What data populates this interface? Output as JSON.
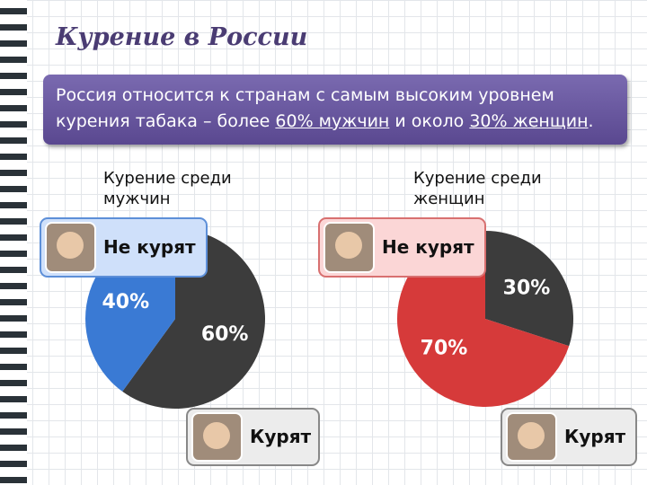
{
  "title": "Курение в России",
  "banner": [
    "Россия относится  к странам с самым высоким уровнем курения табака – более ",
    "60% мужчин",
    " и около ",
    "30% женщин",
    "."
  ],
  "chart_data": [
    {
      "type": "pie",
      "title": "Курение среди мужчин",
      "categories": [
        "Не курят",
        "Курят"
      ],
      "values": [
        40,
        60
      ],
      "value_labels": [
        "40%",
        "60%"
      ],
      "colors": [
        "#3a7ad4",
        "#3c3c3c"
      ]
    },
    {
      "type": "pie",
      "title": "Курение среди женщин",
      "categories": [
        "Не курят",
        "Курят"
      ],
      "values": [
        70,
        30
      ],
      "value_labels": [
        "70%",
        "30%"
      ],
      "colors": [
        "#d63a3a",
        "#3c3c3c"
      ]
    }
  ]
}
